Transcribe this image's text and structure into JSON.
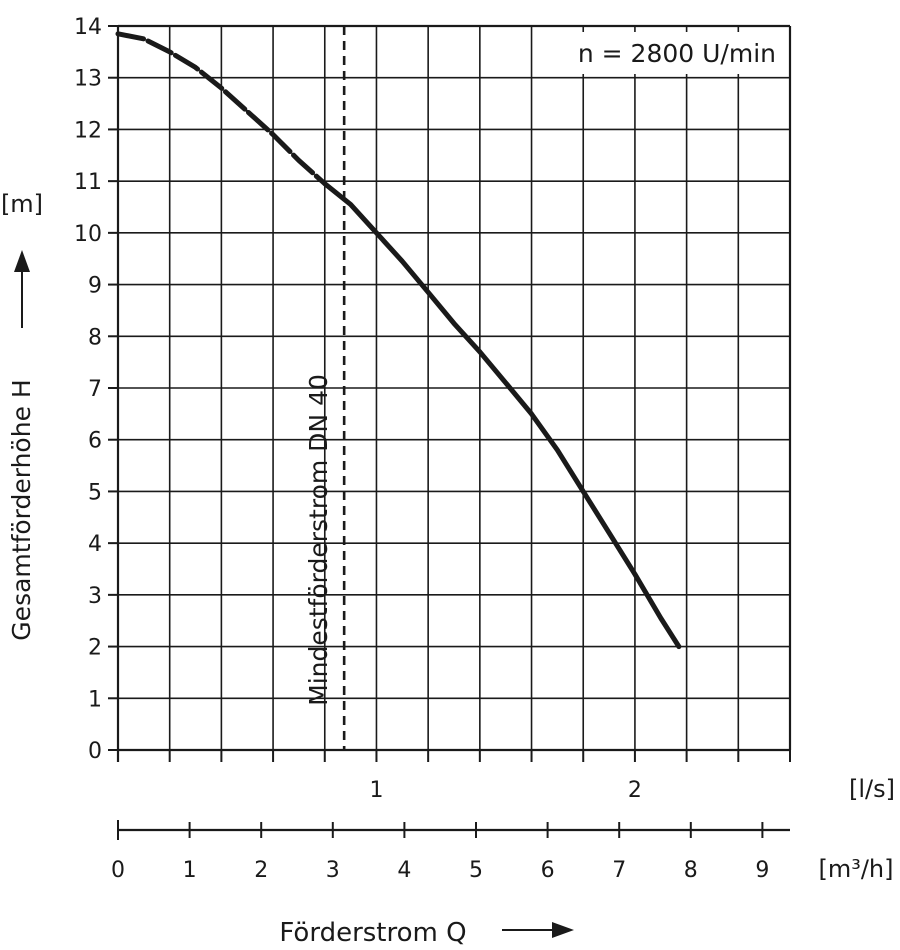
{
  "chart_data": {
    "type": "line",
    "ylabel": "Gesamtförderhöhe H",
    "yunit": "[m]",
    "xlabel": "Förderstrom Q",
    "xunit_ls": "[l/s]",
    "xunit_m3h": "[m³/h]",
    "annotation": "n = 2800 U/min",
    "min_flow_label": "Mindestförderstrom DN 40",
    "min_flow_ls": 0.875,
    "ylim": [
      0,
      14
    ],
    "xlim_ls": [
      0,
      2.6
    ],
    "yticks": [
      "0",
      "1",
      "2",
      "3",
      "4",
      "5",
      "6",
      "7",
      "8",
      "9",
      "10",
      "11",
      "12",
      "13",
      "14"
    ],
    "xticks_ls": [
      {
        "value": 1,
        "label": "1"
      },
      {
        "value": 2,
        "label": "2"
      }
    ],
    "xticks_m3h": [
      {
        "value": 0,
        "label": "0"
      },
      {
        "value": 1,
        "label": "1"
      },
      {
        "value": 2,
        "label": "2"
      },
      {
        "value": 3,
        "label": "3"
      },
      {
        "value": 4,
        "label": "4"
      },
      {
        "value": 5,
        "label": "5"
      },
      {
        "value": 6,
        "label": "6"
      },
      {
        "value": 7,
        "label": "7"
      },
      {
        "value": 8,
        "label": "8"
      },
      {
        "value": 9,
        "label": "9"
      }
    ],
    "grid": true,
    "series": [
      {
        "color": "#1a1a1a",
        "dashed_until_ls": 0.875,
        "points": [
          {
            "x": 0.0,
            "y": 13.85
          },
          {
            "x": 0.1,
            "y": 13.75
          },
          {
            "x": 0.2,
            "y": 13.5
          },
          {
            "x": 0.3,
            "y": 13.2
          },
          {
            "x": 0.4,
            "y": 12.8
          },
          {
            "x": 0.5,
            "y": 12.35
          },
          {
            "x": 0.6,
            "y": 11.9
          },
          {
            "x": 0.7,
            "y": 11.4
          },
          {
            "x": 0.8,
            "y": 10.95
          },
          {
            "x": 0.9,
            "y": 10.55
          },
          {
            "x": 1.0,
            "y": 10.0
          },
          {
            "x": 1.1,
            "y": 9.45
          },
          {
            "x": 1.2,
            "y": 8.85
          },
          {
            "x": 1.3,
            "y": 8.25
          },
          {
            "x": 1.4,
            "y": 7.7
          },
          {
            "x": 1.5,
            "y": 7.1
          },
          {
            "x": 1.6,
            "y": 6.5
          },
          {
            "x": 1.7,
            "y": 5.8
          },
          {
            "x": 1.8,
            "y": 5.0
          },
          {
            "x": 1.9,
            "y": 4.2
          },
          {
            "x": 2.0,
            "y": 3.4
          },
          {
            "x": 2.1,
            "y": 2.55
          },
          {
            "x": 2.17,
            "y": 2.0
          }
        ]
      }
    ]
  }
}
